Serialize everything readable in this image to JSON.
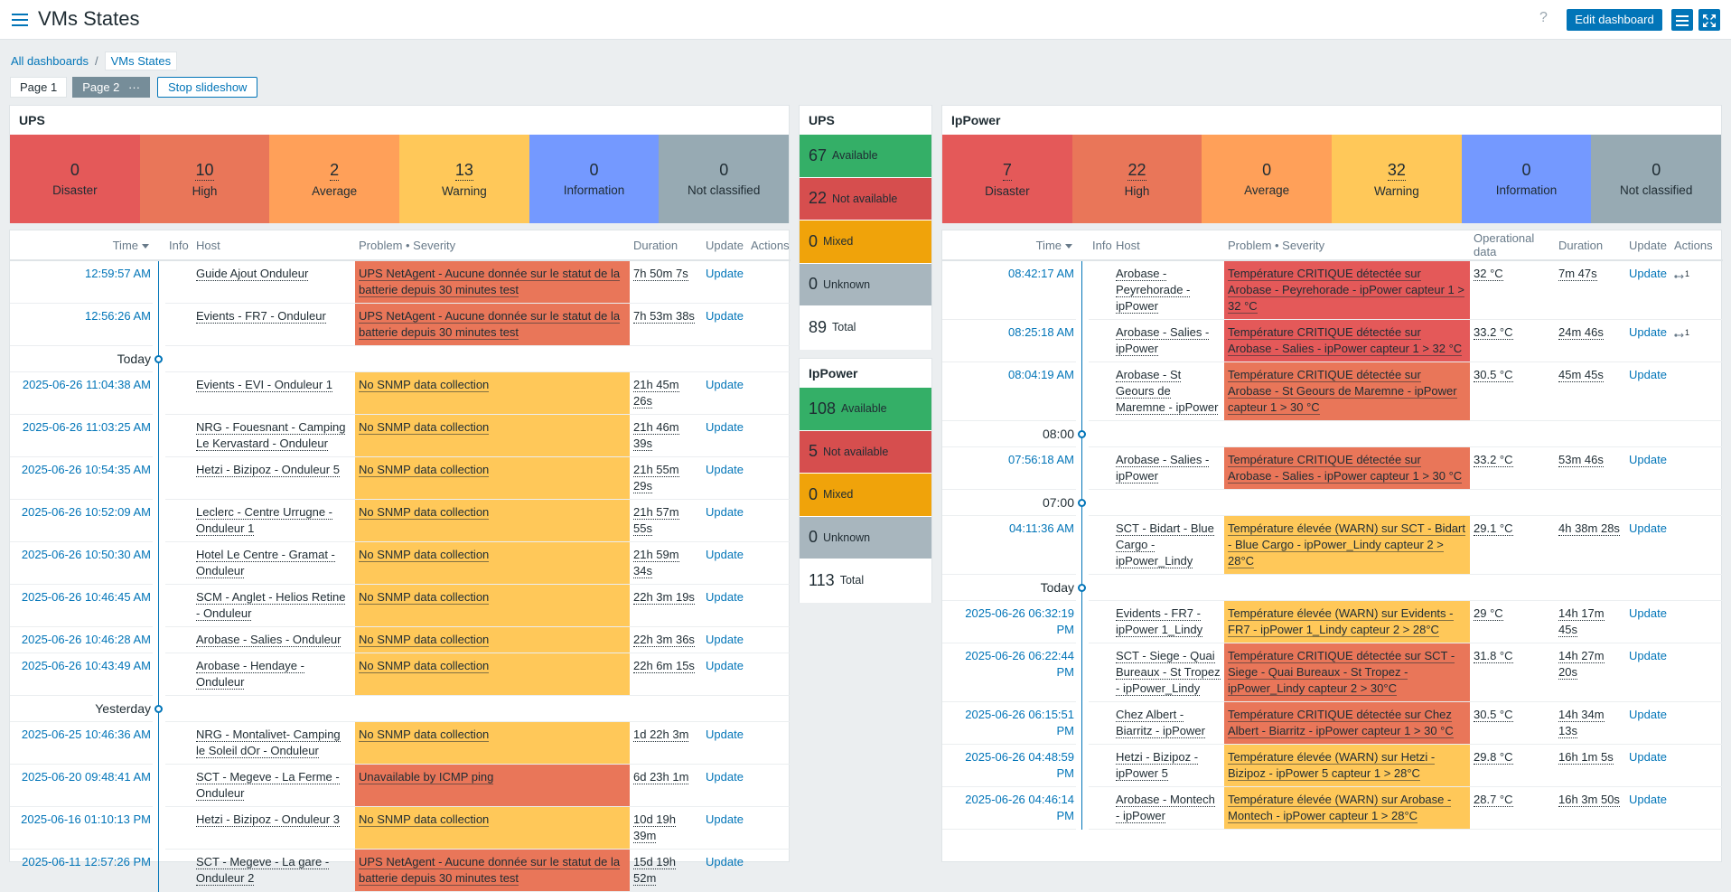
{
  "header": {
    "title": "VMs States",
    "edit_button": "Edit dashboard",
    "help": "?"
  },
  "breadcrumbs": [
    "All dashboards",
    "VMs States"
  ],
  "pages": [
    "Page 1",
    "Page 2"
  ],
  "slideshow_button": "Stop slideshow",
  "severity_colors": {
    "disaster": "#e45959",
    "high": "#e97659",
    "warning": "#ffc859"
  },
  "ups_severity": {
    "title": "UPS",
    "tiles": [
      {
        "count": 0,
        "label": "Disaster",
        "color": "#e45959"
      },
      {
        "count": 10,
        "label": "High",
        "color": "#e97659"
      },
      {
        "count": 2,
        "label": "Average",
        "color": "#ffa059"
      },
      {
        "count": 13,
        "label": "Warning",
        "color": "#ffc859"
      },
      {
        "count": 0,
        "label": "Information",
        "color": "#7499ff"
      },
      {
        "count": 0,
        "label": "Not classified",
        "color": "#97aab3"
      }
    ]
  },
  "ups_problems": {
    "columns": {
      "time": "Time",
      "info": "Info",
      "host": "Host",
      "problem": "Problem • Severity",
      "duration": "Duration",
      "update": "Update",
      "actions": "Actions"
    },
    "update_link": "Update",
    "rows": [
      {
        "time": "12:59:57 AM",
        "host": "Guide Ajout Onduleur",
        "problem": "UPS NetAgent - Aucune donnée sur le statut de la batterie depuis 30 minutes test",
        "severity": "high",
        "duration": "7h 50m 7s"
      },
      {
        "time": "12:56:26 AM",
        "host": "Evients - FR7 - Onduleur",
        "problem": "UPS NetAgent - Aucune donnée sur le statut de la batterie depuis 30 minutes test",
        "severity": "high",
        "duration": "7h 53m 38s"
      },
      {
        "separator": "Today"
      },
      {
        "time": "2025-06-26 11:04:38 AM",
        "host": "Evients - EVI - Onduleur 1",
        "problem": "No SNMP data collection",
        "severity": "warning",
        "duration": "21h 45m 26s"
      },
      {
        "time": "2025-06-26 11:03:25 AM",
        "host": "NRG - Fouesnant - Camping Le Kervastard - Onduleur",
        "problem": "No SNMP data collection",
        "severity": "warning",
        "duration": "21h 46m 39s"
      },
      {
        "time": "2025-06-26 10:54:35 AM",
        "host": "Hetzi - Bizipoz - Onduleur 5",
        "problem": "No SNMP data collection",
        "severity": "warning",
        "duration": "21h 55m 29s"
      },
      {
        "time": "2025-06-26 10:52:09 AM",
        "host": "Leclerc - Centre Urrugne - Onduleur 1",
        "problem": "No SNMP data collection",
        "severity": "warning",
        "duration": "21h 57m 55s"
      },
      {
        "time": "2025-06-26 10:50:30 AM",
        "host": "Hotel Le Centre - Gramat - Onduleur",
        "problem": "No SNMP data collection",
        "severity": "warning",
        "duration": "21h 59m 34s"
      },
      {
        "time": "2025-06-26 10:46:45 AM",
        "host": "SCM - Anglet - Helios Retine - Onduleur",
        "problem": "No SNMP data collection",
        "severity": "warning",
        "duration": "22h 3m 19s"
      },
      {
        "time": "2025-06-26 10:46:28 AM",
        "host": "Arobase - Salies - Onduleur",
        "problem": "No SNMP data collection",
        "severity": "warning",
        "duration": "22h 3m 36s"
      },
      {
        "time": "2025-06-26 10:43:49 AM",
        "host": "Arobase - Hendaye - Onduleur",
        "problem": "No SNMP data collection",
        "severity": "warning",
        "duration": "22h 6m 15s"
      },
      {
        "separator": "Yesterday"
      },
      {
        "time": "2025-06-25 10:46:36 AM",
        "host": "NRG - Montalivet- Camping le Soleil dOr - Onduleur",
        "problem": "No SNMP data collection",
        "severity": "warning",
        "duration": "1d 22h 3m"
      },
      {
        "time": "2025-06-20 09:48:41 AM",
        "host": "SCT - Megeve - La Ferme - Onduleur",
        "problem": "Unavailable by ICMP ping",
        "severity": "high",
        "duration": "6d 23h 1m"
      },
      {
        "time": "2025-06-16 01:10:13 PM",
        "host": "Hetzi - Bizipoz - Onduleur 3",
        "problem": "No SNMP data collection",
        "severity": "warning",
        "duration": "10d 19h 39m"
      },
      {
        "time": "2025-06-11 12:57:26 PM",
        "host": "SCT - Megeve - La gare - Onduleur 2",
        "problem": "UPS NetAgent - Aucune donnée sur le statut de la batterie depuis 30 minutes test",
        "severity": "high",
        "duration": "15d 19h 52m"
      }
    ]
  },
  "ups_availability": {
    "title": "UPS",
    "items": [
      {
        "count": 67,
        "label": "Available",
        "color": "#34af67"
      },
      {
        "count": 22,
        "label": "Not available",
        "color": "#d64e4e"
      },
      {
        "count": 0,
        "label": "Mixed",
        "color": "#f0a30a"
      },
      {
        "count": 0,
        "label": "Unknown",
        "color": "#a8b6be"
      }
    ],
    "total": {
      "count": 89,
      "label": "Total"
    }
  },
  "ippower_availability": {
    "title": "IpPower",
    "items": [
      {
        "count": 108,
        "label": "Available",
        "color": "#34af67"
      },
      {
        "count": 5,
        "label": "Not available",
        "color": "#d64e4e"
      },
      {
        "count": 0,
        "label": "Mixed",
        "color": "#f0a30a"
      },
      {
        "count": 0,
        "label": "Unknown",
        "color": "#a8b6be"
      }
    ],
    "total": {
      "count": 113,
      "label": "Total"
    }
  },
  "ippower_severity": {
    "title": "IpPower",
    "tiles": [
      {
        "count": 7,
        "label": "Disaster",
        "color": "#e45959"
      },
      {
        "count": 22,
        "label": "High",
        "color": "#e97659"
      },
      {
        "count": 0,
        "label": "Average",
        "color": "#ffa059"
      },
      {
        "count": 32,
        "label": "Warning",
        "color": "#ffc859"
      },
      {
        "count": 0,
        "label": "Information",
        "color": "#7499ff"
      },
      {
        "count": 0,
        "label": "Not classified",
        "color": "#97aab3"
      }
    ]
  },
  "ippower_problems": {
    "columns": {
      "time": "Time",
      "info": "Info",
      "host": "Host",
      "problem": "Problem • Severity",
      "opdata": "Operational data",
      "duration": "Duration",
      "update": "Update",
      "actions": "Actions"
    },
    "update_link": "Update",
    "rows": [
      {
        "time": "08:42:17 AM",
        "host": "Arobase - Peyrehorade - ipPower",
        "problem": "Température CRITIQUE détectée sur Arobase - Peyrehorade - ipPower capteur 1 > 32 °C",
        "severity": "disaster",
        "opdata": "32 °C",
        "duration": "7m 47s",
        "actions": 1
      },
      {
        "time": "08:25:18 AM",
        "host": "Arobase - Salies - ipPower",
        "problem": "Température CRITIQUE détectée sur Arobase - Salies - ipPower capteur 1 > 32 °C",
        "severity": "disaster",
        "opdata": "33.2 °C",
        "duration": "24m 46s",
        "actions": 1
      },
      {
        "time": "08:04:19 AM",
        "host": "Arobase - St Geours de Maremne - ipPower",
        "problem": "Température CRITIQUE détectée sur Arobase - St Geours de Maremne - ipPower capteur 1 > 30 °C",
        "severity": "high",
        "opdata": "30.5 °C",
        "duration": "45m 45s"
      },
      {
        "separator": "08:00"
      },
      {
        "time": "07:56:18 AM",
        "host": "Arobase - Salies - ipPower",
        "problem": "Température CRITIQUE détectée sur Arobase - Salies - ipPower capteur 1 > 30 °C",
        "severity": "high",
        "opdata": "33.2 °C",
        "duration": "53m 46s"
      },
      {
        "separator": "07:00"
      },
      {
        "time": "04:11:36 AM",
        "host": "SCT - Bidart - Blue Cargo - ipPower_Lindy",
        "problem": "Température élevée (WARN) sur SCT - Bidart - Blue Cargo - ipPower_Lindy capteur 2 > 28°C",
        "severity": "warning",
        "opdata": "29.1 °C",
        "duration": "4h 38m 28s"
      },
      {
        "separator": "Today"
      },
      {
        "time": "2025-06-26 06:32:19 PM",
        "host": "Evidents - FR7 - ipPower 1_Lindy",
        "problem": "Température élevée (WARN) sur Evidents - FR7 - ipPower 1_Lindy capteur 2 > 28°C",
        "severity": "warning",
        "opdata": "29 °C",
        "duration": "14h 17m 45s"
      },
      {
        "time": "2025-06-26 06:22:44 PM",
        "host": "SCT - Siege - Quai Bureaux - St Tropez - ipPower_Lindy",
        "problem": "Température CRITIQUE détectée sur SCT - Siege - Quai Bureaux - St Tropez - ipPower_Lindy capteur 2 > 30°C",
        "severity": "high",
        "opdata": "31.8 °C",
        "duration": "14h 27m 20s"
      },
      {
        "time": "2025-06-26 06:15:51 PM",
        "host": "Chez Albert - Biarritz - ipPower",
        "problem": "Température CRITIQUE détectée sur Chez Albert - Biarritz - ipPower capteur 1 > 30 °C",
        "severity": "high",
        "opdata": "30.5 °C",
        "duration": "14h 34m 13s"
      },
      {
        "time": "2025-06-26 04:48:59 PM",
        "host": "Hetzi - Bizipoz - ipPower 5",
        "problem": "Température élevée (WARN) sur Hetzi - Bizipoz - ipPower 5 capteur 1 > 28°C",
        "severity": "warning",
        "opdata": "29.8 °C",
        "duration": "16h 1m 5s"
      },
      {
        "time": "2025-06-26 04:46:14 PM",
        "host": "Arobase - Montech - ipPower",
        "problem": "Température élevée (WARN) sur Arobase - Montech - ipPower capteur 1 > 28°C",
        "severity": "warning",
        "opdata": "28.7 °C",
        "duration": "16h 3m 50s"
      }
    ]
  }
}
